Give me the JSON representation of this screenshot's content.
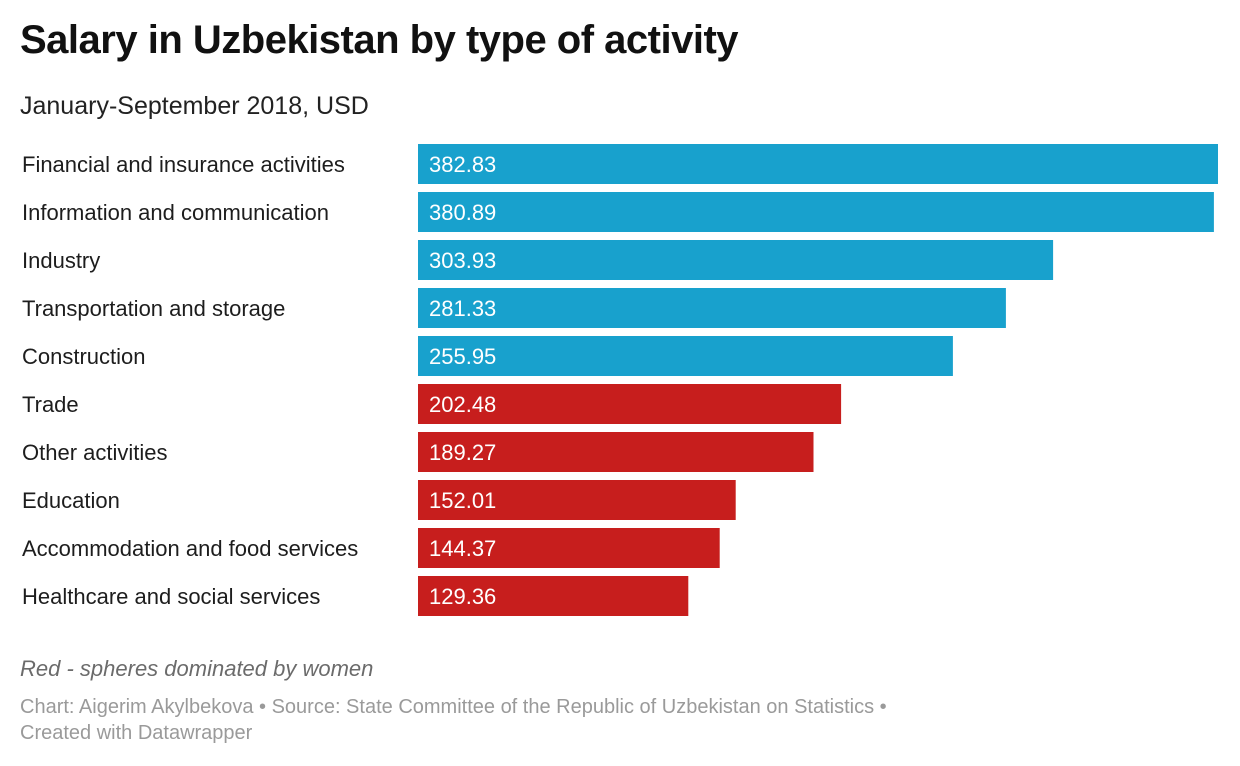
{
  "header": {
    "title": "Salary in Uzbekistan by type of activity",
    "subtitle": "January-September 2018, USD"
  },
  "chart_data": {
    "type": "bar",
    "orientation": "horizontal",
    "title": "Salary in Uzbekistan by type of activity",
    "subtitle": "January-September 2018, USD",
    "xlim": [
      0,
      382.83
    ],
    "grid": false,
    "legend": "none",
    "categories": [
      "Financial and insurance activities",
      "Information and communication",
      "Industry",
      "Transportation and storage",
      "Construction",
      "Trade",
      "Other activities",
      "Education",
      "Accommodation and food services",
      "Healthcare and social services"
    ],
    "values": [
      382.83,
      380.89,
      303.93,
      281.33,
      255.95,
      202.48,
      189.27,
      152.01,
      144.37,
      129.36
    ],
    "value_labels": [
      "382.83",
      "380.89",
      "303.93",
      "281.33",
      "255.95",
      "202.48",
      "189.27",
      "152.01",
      "144.37",
      "129.36"
    ],
    "bar_colors": [
      "#18a1cd",
      "#18a1cd",
      "#18a1cd",
      "#18a1cd",
      "#18a1cd",
      "#c71e1d",
      "#c71e1d",
      "#c71e1d",
      "#c71e1d",
      "#c71e1d"
    ],
    "colors": {
      "blue": "#18a1cd",
      "red": "#c71e1d"
    }
  },
  "notes": {
    "highlight_note": "Red - spheres dominated by women"
  },
  "footer": {
    "chart_credit": "Chart: Aigerim Akylbekova",
    "separator": "•",
    "source": "Source: State Committee of the Republic of Uzbekistan on Statistics",
    "created_with": "Created with Datawrapper"
  }
}
